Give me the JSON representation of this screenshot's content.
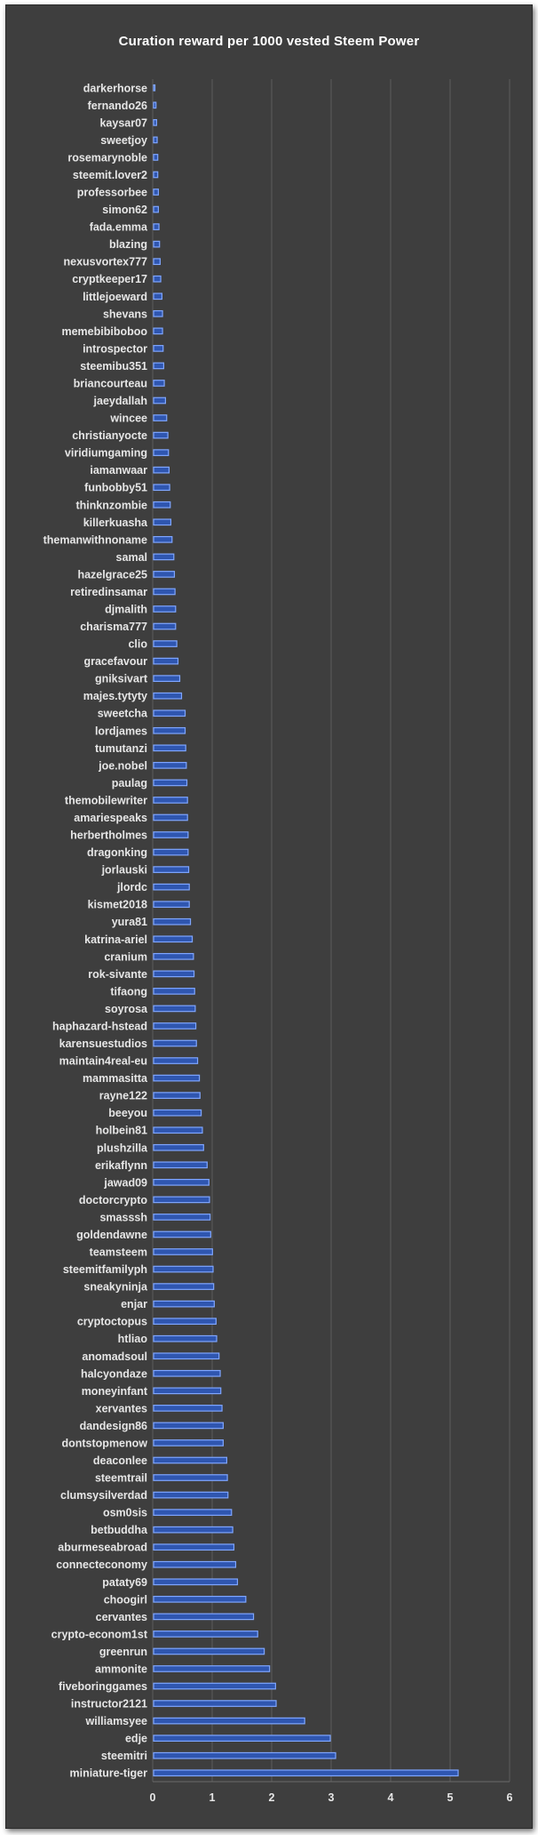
{
  "chart_data": {
    "type": "bar",
    "orientation": "horizontal",
    "title": "Curation reward per 1000 vested Steem Power",
    "xlabel": "",
    "ylabel": "",
    "xlim": [
      0,
      6
    ],
    "xticks": [
      0,
      1,
      2,
      3,
      4,
      5,
      6
    ],
    "grid": true,
    "bar_color": "#2f56b0",
    "bar_edge_color": "#7fa6ff",
    "categories": [
      "darkerhorse",
      "fernando26",
      "kaysar07",
      "sweetjoy",
      "rosemarynoble",
      "steemit.lover2",
      "professorbee",
      "simon62",
      "fada.emma",
      "blazing",
      "nexusvortex777",
      "cryptkeeper17",
      "littlejoeward",
      "shevans",
      "memebibiboboo",
      "introspector",
      "steemibu351",
      "briancourteau",
      "jaeydallah",
      "wincee",
      "christianyocte",
      "viridiumgaming",
      "iamanwaar",
      "funbobby51",
      "thinknzombie",
      "killerkuasha",
      "themanwithnoname",
      "samal",
      "hazelgrace25",
      "retiredinsamar",
      "djmalith",
      "charisma777",
      "clio",
      "gracefavour",
      "gniksivart",
      "majes.tytyty",
      "sweetcha",
      "lordjames",
      "tumutanzi",
      "joe.nobel",
      "paulag",
      "themobilewriter",
      "amariespeaks",
      "herbertholmes",
      "dragonking",
      "jorlauski",
      "jlordc",
      "kismet2018",
      "yura81",
      "katrina-ariel",
      "cranium",
      "rok-sivante",
      "tifaong",
      "soyrosa",
      "haphazard-hstead",
      "karensuestudios",
      "maintain4real-eu",
      "mammasitta",
      "rayne122",
      "beeyou",
      "holbein81",
      "plushzilla",
      "erikaflynn",
      "jawad09",
      "doctorcrypto",
      "smasssh",
      "goldendawne",
      "teamsteem",
      "steemitfamilyph",
      "sneakyninja",
      "enjar",
      "cryptoctopus",
      "htliao",
      "anomadsoul",
      "halcyondaze",
      "moneyinfant",
      "xervantes",
      "dandesign86",
      "dontstopmenow",
      "deaconlee",
      "steemtrail",
      "clumsysilverdad",
      "osm0sis",
      "betbuddha",
      "aburmeseabroad",
      "connecteconomy",
      "pataty69",
      "choogirl",
      "cervantes",
      "crypto-econom1st",
      "greenrun",
      "ammonite",
      "fiveboringgames",
      "instructor2121",
      "williamsyee",
      "edje",
      "steemitri",
      "miniature-tiger"
    ],
    "values": [
      0.02,
      0.04,
      0.05,
      0.06,
      0.07,
      0.07,
      0.08,
      0.08,
      0.09,
      0.1,
      0.11,
      0.12,
      0.14,
      0.15,
      0.15,
      0.16,
      0.17,
      0.18,
      0.2,
      0.22,
      0.24,
      0.25,
      0.26,
      0.27,
      0.28,
      0.29,
      0.31,
      0.34,
      0.35,
      0.36,
      0.37,
      0.37,
      0.39,
      0.41,
      0.44,
      0.47,
      0.53,
      0.53,
      0.54,
      0.55,
      0.56,
      0.57,
      0.57,
      0.58,
      0.58,
      0.59,
      0.6,
      0.6,
      0.62,
      0.65,
      0.67,
      0.68,
      0.69,
      0.7,
      0.71,
      0.72,
      0.74,
      0.77,
      0.78,
      0.8,
      0.82,
      0.84,
      0.9,
      0.93,
      0.94,
      0.95,
      0.96,
      0.99,
      1.0,
      1.01,
      1.02,
      1.05,
      1.06,
      1.1,
      1.12,
      1.13,
      1.15,
      1.17,
      1.17,
      1.23,
      1.24,
      1.25,
      1.31,
      1.33,
      1.35,
      1.38,
      1.41,
      1.55,
      1.68,
      1.75,
      1.86,
      1.95,
      2.05,
      2.06,
      2.54,
      2.97,
      3.06,
      5.12
    ]
  }
}
